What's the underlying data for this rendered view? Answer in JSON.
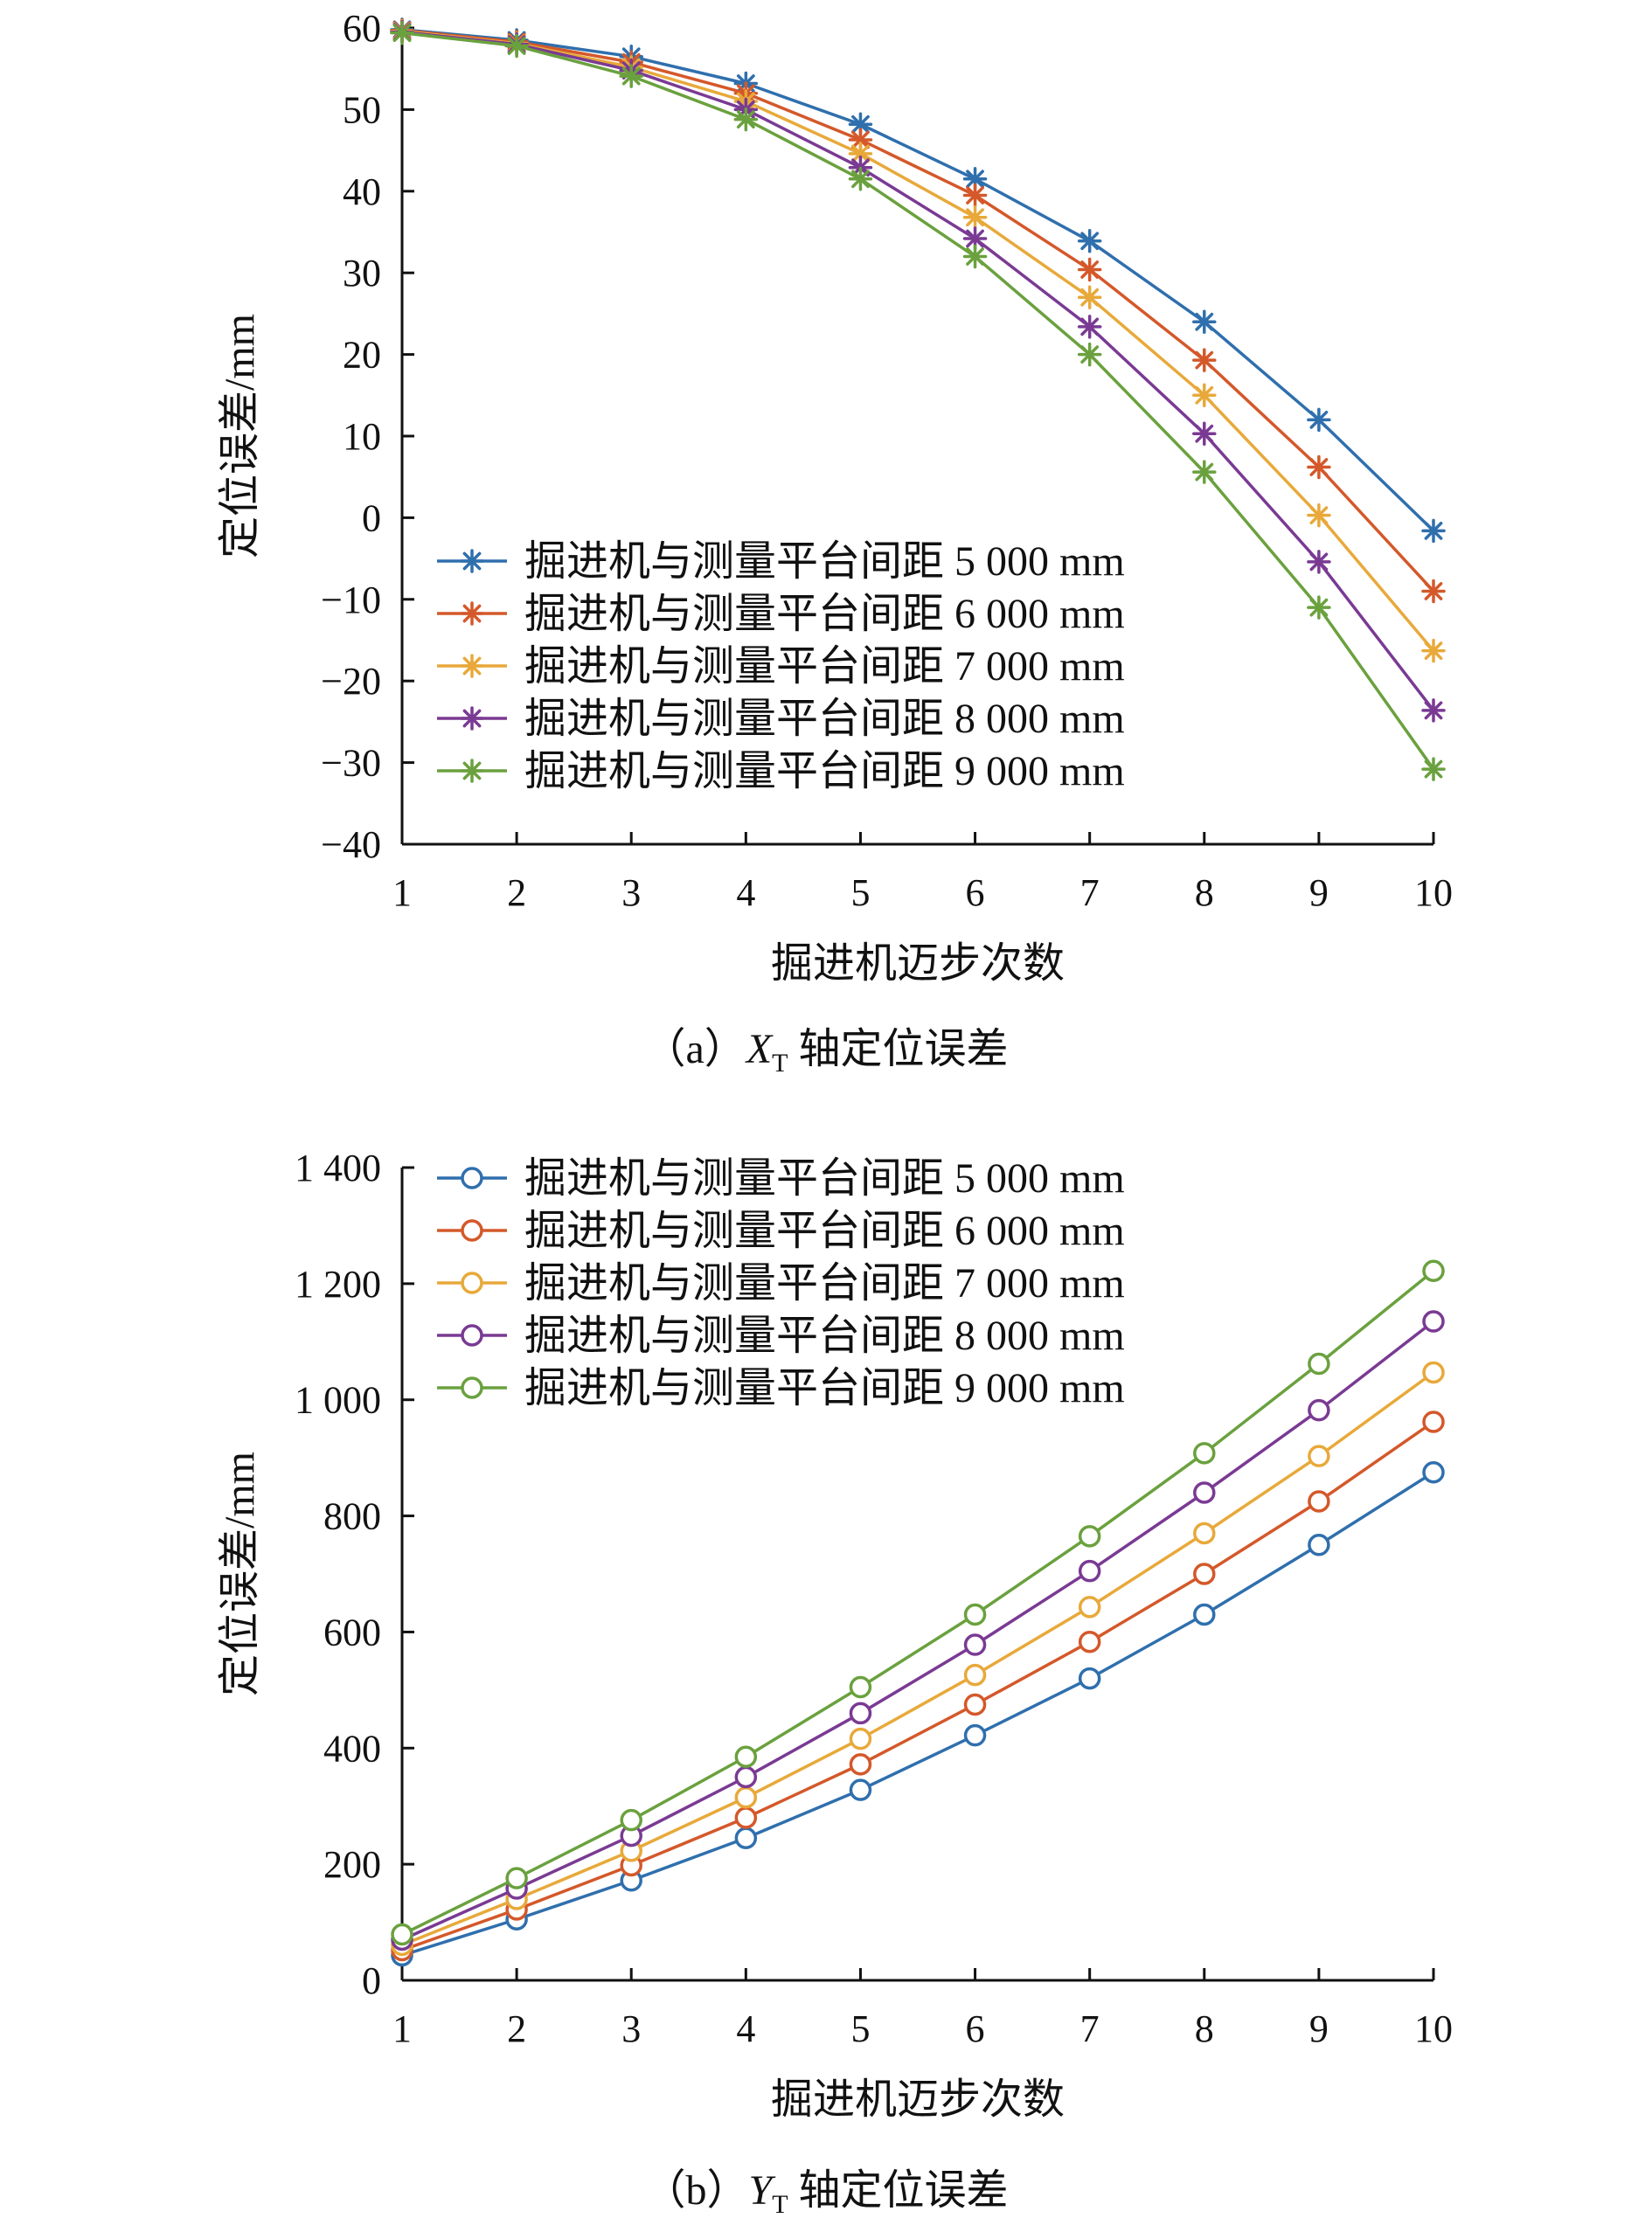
{
  "chart_data": [
    {
      "type": "line",
      "marker": "asterisk",
      "x": [
        1,
        2,
        3,
        4,
        5,
        6,
        7,
        8,
        9,
        10
      ],
      "xlim": [
        1,
        10
      ],
      "ylim": [
        -40,
        60
      ],
      "xticks": [
        "1",
        "2",
        "3",
        "4",
        "5",
        "6",
        "7",
        "8",
        "9",
        "10"
      ],
      "yticks": [
        "−40",
        "−30",
        "−20",
        "−10",
        "0",
        "10",
        "20",
        "30",
        "40",
        "50",
        "60"
      ],
      "xlabel": "掘进机迈步次数",
      "ylabel": "定位误差/mm",
      "caption": {
        "prefix": "（a）",
        "var": "X",
        "sub": "T",
        "text": " 轴定位误差"
      },
      "legend_position": "lower-left",
      "series": [
        {
          "name": "掘进机与测量平台间距 5 000 mm",
          "color": "#2f6fad",
          "values": [
            59.8,
            58.5,
            56.5,
            53.2,
            48.2,
            41.5,
            33.9,
            24.0,
            12.0,
            -1.6
          ]
        },
        {
          "name": "掘进机与测量平台间距 6 000 mm",
          "color": "#d4582a",
          "values": [
            59.7,
            58.3,
            55.8,
            52.0,
            46.3,
            39.5,
            30.4,
            19.3,
            6.2,
            -9.0
          ]
        },
        {
          "name": "掘进机与测量平台间距 7 000 mm",
          "color": "#e8a93a",
          "values": [
            59.6,
            58.1,
            55.2,
            51.0,
            44.6,
            36.8,
            27.0,
            15.0,
            0.3,
            -16.3
          ]
        },
        {
          "name": "掘进机与测量平台间距 8 000 mm",
          "color": "#7a3a93",
          "values": [
            59.5,
            58.0,
            54.8,
            50.0,
            42.9,
            34.2,
            23.4,
            10.3,
            -5.4,
            -23.6
          ]
        },
        {
          "name": "掘进机与测量平台间距 9 000 mm",
          "color": "#6aa13e",
          "values": [
            59.4,
            57.8,
            54.1,
            48.8,
            41.5,
            32.0,
            20.0,
            5.6,
            -11.0,
            -30.8
          ]
        }
      ]
    },
    {
      "type": "line",
      "marker": "circle",
      "x": [
        1,
        2,
        3,
        4,
        5,
        6,
        7,
        8,
        9,
        10
      ],
      "xlim": [
        1,
        10
      ],
      "ylim": [
        0,
        1400
      ],
      "xticks": [
        "1",
        "2",
        "3",
        "4",
        "5",
        "6",
        "7",
        "8",
        "9",
        "10"
      ],
      "yticks": [
        "0",
        "200",
        "400",
        "600",
        "800",
        "1 000",
        "1 200",
        "1 400"
      ],
      "xlabel": "掘进机迈步次数",
      "ylabel": "定位误差/mm",
      "caption": {
        "prefix": "（b）",
        "var": "Y",
        "sub": "T",
        "text": " 轴定位误差"
      },
      "legend_position": "top-left",
      "series": [
        {
          "name": "掘进机与测量平台间距 5 000 mm",
          "color": "#2f6fad",
          "values": [
            43,
            105,
            172,
            245,
            328,
            422,
            520,
            630,
            750,
            875
          ]
        },
        {
          "name": "掘进机与测量平台间距 6 000 mm",
          "color": "#d4582a",
          "values": [
            52,
            122,
            198,
            280,
            372,
            475,
            583,
            700,
            825,
            962
          ]
        },
        {
          "name": "掘进机与测量平台间距 7 000 mm",
          "color": "#e8a93a",
          "values": [
            61,
            140,
            223,
            315,
            416,
            526,
            643,
            770,
            903,
            1047
          ]
        },
        {
          "name": "掘进机与测量平台间距 8 000 mm",
          "color": "#7a3a93",
          "values": [
            70,
            158,
            249,
            350,
            460,
            578,
            705,
            840,
            982,
            1135
          ]
        },
        {
          "name": "掘进机与测量平台间距 9 000 mm",
          "color": "#6aa13e",
          "values": [
            79,
            176,
            276,
            385,
            505,
            630,
            765,
            908,
            1062,
            1222
          ]
        }
      ]
    }
  ]
}
